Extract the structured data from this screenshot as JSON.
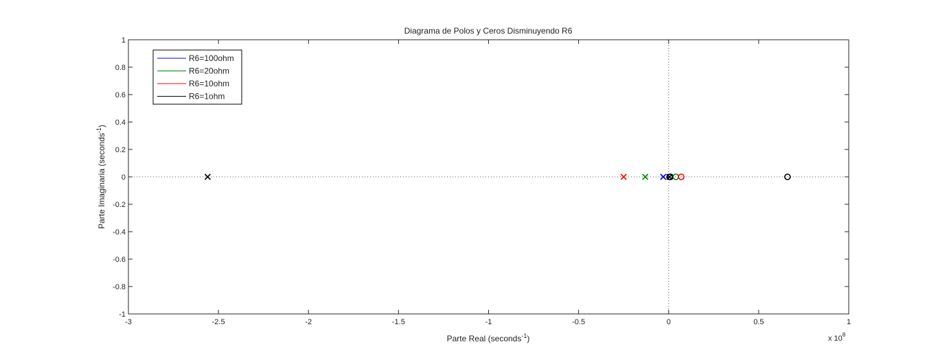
{
  "chart_data": {
    "type": "scatter",
    "title": "Diagrama de Polos y Ceros Disminuyendo R6",
    "xlabel": {
      "main": "Parte Real (seconds",
      "sup": "-1",
      "tail": ")"
    },
    "ylabel": {
      "main": "Parte Imaginaria (seconds",
      "sup": "-1",
      "tail": ")"
    },
    "x_exponent": {
      "base": "x 10",
      "power": "8"
    },
    "xlim": [
      -3,
      1
    ],
    "ylim": [
      -1,
      1
    ],
    "xticks": [
      -3,
      -2.5,
      -2,
      -1.5,
      -1,
      -0.5,
      0,
      0.5,
      1
    ],
    "xtick_labels": [
      "-3",
      "-2.5",
      "-2",
      "-1.5",
      "-1",
      "-0.5",
      "0",
      "0.5",
      "1"
    ],
    "yticks": [
      -1,
      -0.8,
      -0.6,
      -0.4,
      -0.2,
      0,
      0.2,
      0.4,
      0.6,
      0.8,
      1
    ],
    "ytick_labels": [
      "-1",
      "-0.8",
      "-0.6",
      "-0.4",
      "-0.2",
      "0",
      "0.2",
      "0.4",
      "0.6",
      "0.8",
      "1"
    ],
    "grid": false,
    "zero_lines": true,
    "legend_position": "top-left",
    "series": [
      {
        "name": "R6=100ohm",
        "color": "#0000ff",
        "poles": [
          {
            "re": -0.03,
            "im": 0
          }
        ],
        "zeros": [
          {
            "re": 0.01,
            "im": 0
          }
        ]
      },
      {
        "name": "R6=20ohm",
        "color": "#008000",
        "poles": [
          {
            "re": -0.13,
            "im": 0
          }
        ],
        "zeros": [
          {
            "re": 0.04,
            "im": 0
          }
        ]
      },
      {
        "name": "R6=10ohm",
        "color": "#ff0000",
        "poles": [
          {
            "re": -0.25,
            "im": 0
          }
        ],
        "zeros": [
          {
            "re": 0.07,
            "im": 0
          }
        ]
      },
      {
        "name": "R6=1ohm",
        "color": "#000000",
        "poles": [
          {
            "re": -2.56,
            "im": 0
          },
          {
            "re": 0.005,
            "im": 0
          }
        ],
        "zeros": [
          {
            "re": 0.66,
            "im": 0
          },
          {
            "re": 0.005,
            "im": 0
          }
        ]
      }
    ]
  }
}
